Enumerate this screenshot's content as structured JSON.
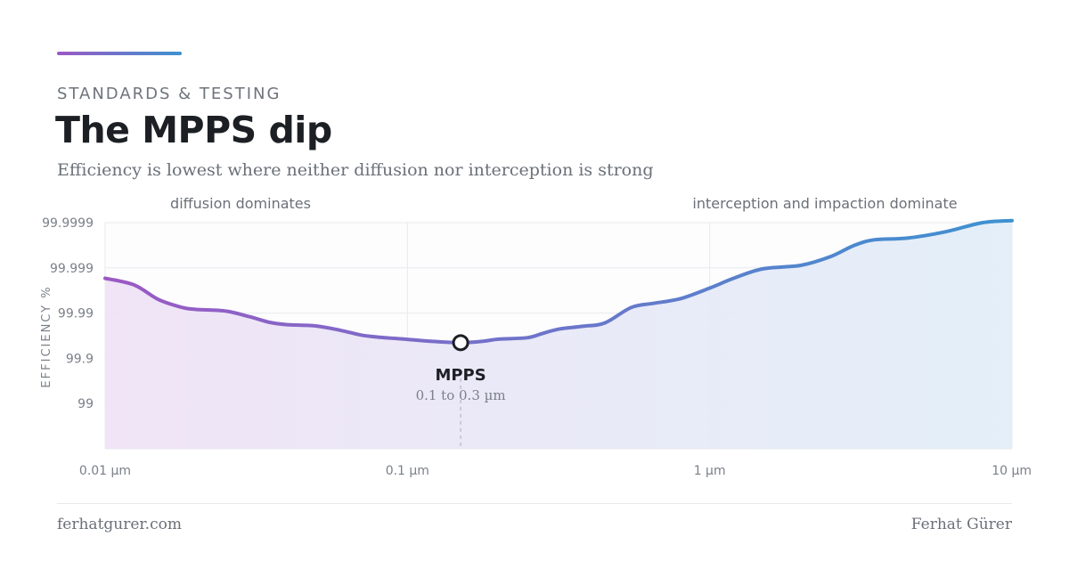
{
  "header": {
    "eyebrow": "STANDARDS & TESTING",
    "title": "The MPPS dip",
    "subtitle": "Efficiency is lowest where neither diffusion nor interception is strong"
  },
  "footer": {
    "site": "ferhatgurer.com",
    "author": "Ferhat Gürer"
  },
  "colors": {
    "accent_start": "#9b59c4",
    "accent_end": "#3d92d0",
    "grid": "#e8eaed",
    "text_muted": "#6b7078",
    "text_dark": "#1c1f24"
  },
  "chart_data": {
    "type": "area",
    "title": "",
    "xlabel": "",
    "ylabel": "EFFICIENCY %",
    "x_scale": "log",
    "y_scale": "log-penetration",
    "xlim": [
      0.01,
      10
    ],
    "ylim": [
      90,
      99.9999
    ],
    "grid": true,
    "x_ticks": [
      {
        "value": 0.01,
        "label": "0.01 µm"
      },
      {
        "value": 0.1,
        "label": "0.1 µm"
      },
      {
        "value": 1,
        "label": "1 µm"
      },
      {
        "value": 10,
        "label": "10 µm"
      }
    ],
    "y_ticks": [
      {
        "value": 99.9999,
        "label": "99.9999"
      },
      {
        "value": 99.999,
        "label": "99.999"
      },
      {
        "value": 99.99,
        "label": "99.99"
      },
      {
        "value": 99.9,
        "label": "99.9"
      },
      {
        "value": 99,
        "label": "99"
      }
    ],
    "series": [
      {
        "x": [
          0.01,
          0.0125,
          0.015,
          0.018,
          0.02,
          0.025,
          0.03,
          0.035,
          0.04,
          0.05,
          0.06,
          0.07,
          0.08,
          0.1,
          0.12,
          0.15,
          0.18,
          0.2,
          0.25,
          0.28,
          0.32,
          0.38,
          0.45,
          0.55,
          0.65,
          0.8,
          1.0,
          1.2,
          1.5,
          2.0,
          2.5,
          3.0,
          3.5,
          4.5,
          6.0,
          8.0,
          10.0
        ],
        "y": [
          99.9983,
          99.9976,
          99.995,
          99.9925,
          99.9917,
          99.991,
          99.988,
          99.984,
          99.982,
          99.9807,
          99.976,
          99.9695,
          99.966,
          99.962,
          99.958,
          99.9549,
          99.9585,
          99.9623,
          99.965,
          99.9719,
          99.9777,
          99.9804,
          99.9835,
          99.9925,
          99.9939,
          99.9952,
          99.9972,
          99.9983,
          99.99895,
          99.99912,
          99.99943,
          99.99968,
          99.99976,
          99.99978,
          99.99984,
          99.9999,
          99.99991
        ]
      }
    ],
    "annotations": [
      {
        "text": "diffusion dominates",
        "region": "left"
      },
      {
        "text": "interception and impaction dominate",
        "region": "right"
      }
    ],
    "marker": {
      "label": "MPPS",
      "sublabel": "0.1 to 0.3 µm",
      "x": 0.15,
      "y": 99.9549
    }
  }
}
